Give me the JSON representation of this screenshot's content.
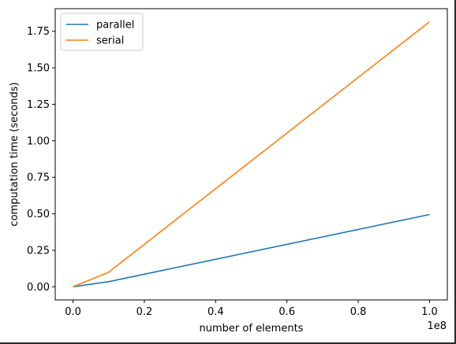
{
  "chart_data": {
    "type": "line",
    "xlabel": "number of elements",
    "ylabel": "computation time (seconds)",
    "x_offset_label": "1e8",
    "xlim": [
      -0.05,
      1.05
    ],
    "ylim": [
      -0.09,
      1.905
    ],
    "x_ticks": [
      0.0,
      0.2,
      0.4,
      0.6,
      0.8,
      1.0
    ],
    "x_tick_labels": [
      "0.0",
      "0.2",
      "0.4",
      "0.6",
      "0.8",
      "1.0"
    ],
    "y_ticks": [
      0.0,
      0.25,
      0.5,
      0.75,
      1.0,
      1.25,
      1.5,
      1.75
    ],
    "y_tick_labels": [
      "0.00",
      "0.25",
      "0.50",
      "0.75",
      "1.00",
      "1.25",
      "1.50",
      "1.75"
    ],
    "legend_position": "top-left",
    "grid": false,
    "series": [
      {
        "name": "parallel",
        "color": "#1f77b4",
        "x": [
          0.0,
          0.1,
          1.0
        ],
        "y": [
          0.0,
          0.035,
          0.495
        ]
      },
      {
        "name": "serial",
        "color": "#ff7f0e",
        "x": [
          0.0,
          0.1,
          1.0
        ],
        "y": [
          0.0,
          0.1,
          1.815
        ]
      }
    ]
  }
}
